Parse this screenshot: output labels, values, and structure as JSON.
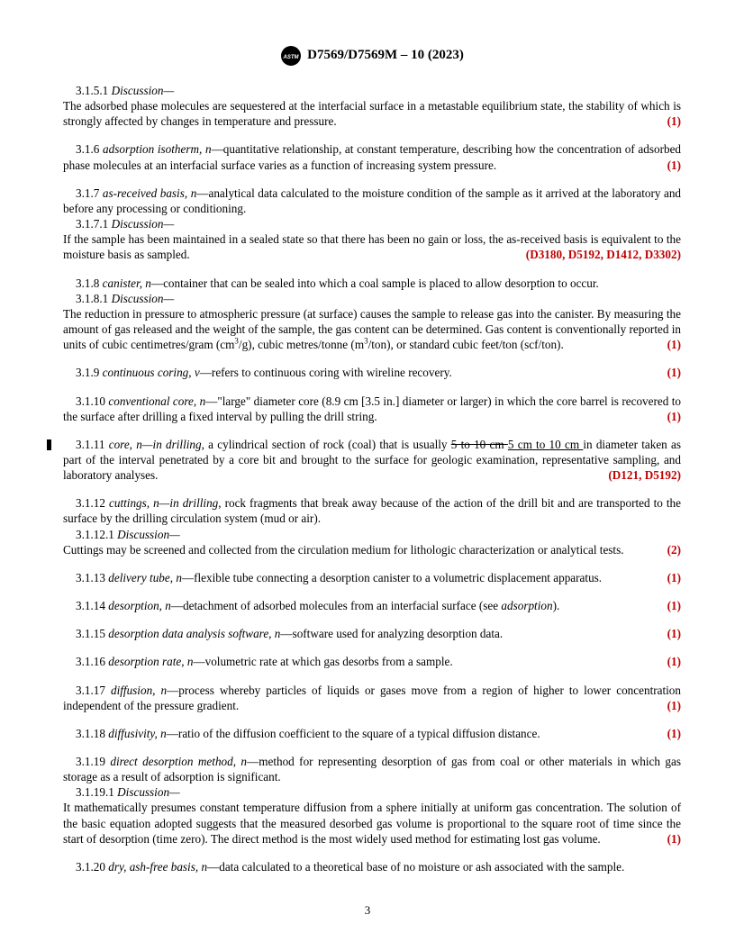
{
  "header": {
    "designation": "D7569/D7569M – 10 (2023)"
  },
  "page_number": "3",
  "entries": [
    {
      "num": "3.1.5.1",
      "disc_label": "Discussion—",
      "body": "The adsorbed phase molecules are sequestered at the interfacial surface in a metastable equilibrium state, the stability of which is strongly affected by changes in temperature and pressure.",
      "ref": "(1)"
    },
    {
      "num": "3.1.6",
      "term": "adsorption isotherm, n",
      "body": "—quantitative relationship, at constant temperature, describing how the concentration of adsorbed phase molecules at an interfacial surface varies as a function of increasing system pressure.",
      "ref": "(1)"
    },
    {
      "num": "3.1.7",
      "term": "as-received basis, n",
      "body": "—analytical data calculated to the moisture condition of the sample as it arrived at the laboratory and before any processing or conditioning.",
      "sub_num": "3.1.7.1",
      "sub_disc": "Discussion—",
      "sub_body": "If the sample has been maintained in a sealed state so that there has been no gain or loss, the as-received basis is equivalent to the moisture basis as sampled.",
      "ref_links": "(D3180, D5192, D1412, D3302)"
    },
    {
      "num": "3.1.8",
      "term": "canister, n",
      "body": "—container that can be sealed into which a coal sample is placed to allow desorption to occur.",
      "sub_num": "3.1.8.1",
      "sub_disc": "Discussion—",
      "sub_body_html": "The reduction in pressure to atmospheric pressure (at surface) causes the sample to release gas into the canister. By measuring the amount of gas released and the weight of the sample, the gas content can be determined. Gas content is conventionally reported in units of cubic centimetres/gram (cm<sup>3</sup>/g), cubic metres/tonne (m<sup>3</sup>/ton), or standard cubic feet/ton (scf/ton).",
      "ref": "(1)"
    },
    {
      "num": "3.1.9",
      "term": "continuous coring, v",
      "body": "—refers to continuous coring with wireline recovery.",
      "ref": "(1)"
    },
    {
      "num": "3.1.10",
      "term": "conventional core, n",
      "body": "—\"large\" diameter core (8.9 cm [3.5 in.] diameter or larger) in which the core barrel is recovered to the surface after drilling a fixed interval by pulling the drill string.",
      "ref": "(1)"
    },
    {
      "num": "3.1.11",
      "term": "core, n—in drilling",
      "body_html": ", a cylindrical section of rock (coal) that is usually <span class=\"strike\">5 to 10 cm </span><span class=\"underline\">5 cm to 10 cm </span>in diameter taken as part of the interval penetrated by a core bit and brought to the surface for geologic examination, representative sampling, and laboratory analyses.",
      "ref_links": "(D121, D5192)",
      "change_bar": true
    },
    {
      "num": "3.1.12",
      "term": "cuttings, n—in drilling",
      "body": ", rock fragments that break away because of the action of the drill bit and are transported to the surface by the drilling circulation system (mud or air).",
      "sub_num": "3.1.12.1",
      "sub_disc": "Discussion—",
      "sub_body": "Cuttings may be screened and collected from the circulation medium for lithologic characterization or analytical tests.",
      "ref": "(2)"
    },
    {
      "num": "3.1.13",
      "term": "delivery tube, n",
      "body": "—flexible tube connecting a desorption canister to a volumetric displacement apparatus.",
      "ref": "(1)"
    },
    {
      "num": "3.1.14",
      "term": "desorption, n",
      "body_html": "—detachment of adsorbed molecules from an interfacial surface (see <span class=\"term\">adsorption</span>).",
      "ref": "(1)"
    },
    {
      "num": "3.1.15",
      "term": "desorption data analysis software, n",
      "body": "—software used for analyzing desorption data.",
      "ref": "(1)"
    },
    {
      "num": "3.1.16",
      "term": "desorption rate, n",
      "body": "—volumetric rate at which gas desorbs from a sample.",
      "ref": "(1)"
    },
    {
      "num": "3.1.17",
      "term": "diffusion, n",
      "body": "—process whereby particles of liquids or gases move from a region of higher to lower concentration independent of the pressure gradient.",
      "ref": "(1)"
    },
    {
      "num": "3.1.18",
      "term": "diffusivity, n",
      "body": "—ratio of the diffusion coefficient to the square of a typical diffusion distance.",
      "ref": "(1)"
    },
    {
      "num": "3.1.19",
      "term": "direct desorption method, n",
      "body": "—method for representing desorption of gas from coal or other materials in which gas storage as a result of adsorption is significant.",
      "sub_num": "3.1.19.1",
      "sub_disc": "Discussion—",
      "sub_body": "It mathematically presumes constant temperature diffusion from a sphere initially at uniform gas concentration. The solution of the basic equation adopted suggests that the measured desorbed gas volume is proportional to the square root of time since the start of desorption (time zero). The direct method is the most widely used method for estimating lost gas volume.",
      "ref": "(1)"
    },
    {
      "num": "3.1.20",
      "term": "dry, ash-free basis, n",
      "body": "—data calculated to a theoretical base of no moisture or ash associated with the sample."
    }
  ]
}
